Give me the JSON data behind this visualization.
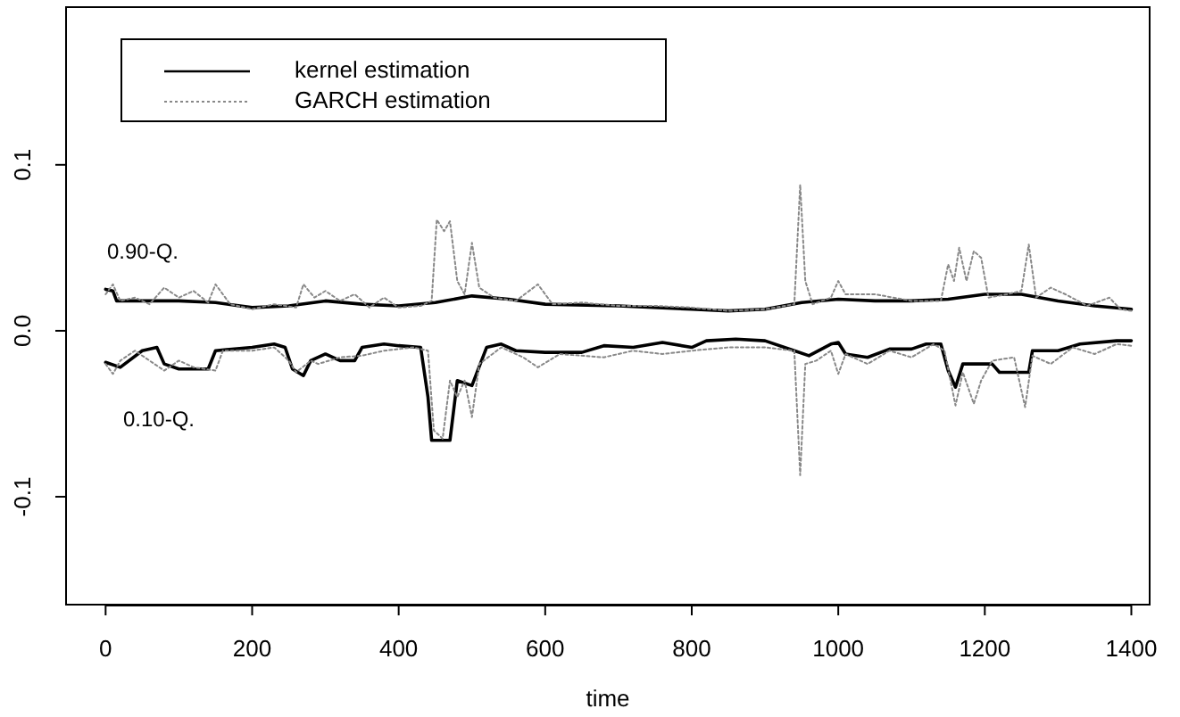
{
  "chart_data": {
    "type": "line",
    "xlabel": "time",
    "xlim": [
      -54,
      1425
    ],
    "xticks": [
      0,
      200,
      400,
      600,
      800,
      1000,
      1200,
      1400
    ],
    "ylim": [
      -0.165,
      0.195
    ],
    "yticks": [
      {
        "value": -0.1,
        "label": "-0.1"
      },
      {
        "value": 0,
        "label": "0.0"
      },
      {
        "value": 0.1,
        "label": "0.1"
      }
    ],
    "legend": "top left",
    "grid": false,
    "marker": "none",
    "annotations": [
      "0.90-Q.",
      "0.10-Q."
    ],
    "series": [
      {
        "name": "kernel estimation",
        "color": "#000000",
        "line_style": "solid",
        "x": [
          0,
          10,
          15,
          100,
          150,
          200,
          250,
          300,
          350,
          400,
          450,
          500,
          550,
          600,
          700,
          800,
          850,
          900,
          950,
          1000,
          1050,
          1100,
          1150,
          1200,
          1250,
          1300,
          1350,
          1400
        ],
        "values": [
          0.025,
          0.024,
          0.018,
          0.018,
          0.017,
          0.014,
          0.015,
          0.018,
          0.016,
          0.015,
          0.017,
          0.021,
          0.019,
          0.016,
          0.015,
          0.013,
          0.012,
          0.013,
          0.017,
          0.019,
          0.018,
          0.018,
          0.019,
          0.022,
          0.022,
          0.018,
          0.015,
          0.013
        ]
      },
      {
        "name": "GARCH estimation",
        "color": "#888888",
        "line_style": "dotted",
        "x": [
          0,
          10,
          20,
          40,
          60,
          80,
          100,
          120,
          140,
          150,
          170,
          200,
          230,
          260,
          270,
          285,
          300,
          320,
          340,
          360,
          380,
          400,
          430,
          445,
          452,
          462,
          470,
          480,
          490,
          500,
          510,
          530,
          560,
          590,
          610,
          650,
          700,
          750,
          800,
          850,
          900,
          940,
          948,
          955,
          965,
          990,
          1000,
          1010,
          1050,
          1100,
          1140,
          1150,
          1158,
          1165,
          1175,
          1185,
          1195,
          1205,
          1230,
          1250,
          1260,
          1270,
          1290,
          1310,
          1340,
          1370,
          1385,
          1400
        ],
        "values": [
          0.022,
          0.028,
          0.018,
          0.02,
          0.016,
          0.026,
          0.02,
          0.024,
          0.017,
          0.028,
          0.016,
          0.013,
          0.016,
          0.014,
          0.028,
          0.02,
          0.024,
          0.018,
          0.022,
          0.014,
          0.02,
          0.014,
          0.015,
          0.018,
          0.067,
          0.06,
          0.066,
          0.03,
          0.022,
          0.053,
          0.026,
          0.02,
          0.018,
          0.028,
          0.016,
          0.017,
          0.015,
          0.015,
          0.014,
          0.012,
          0.013,
          0.016,
          0.088,
          0.03,
          0.016,
          0.02,
          0.03,
          0.022,
          0.022,
          0.018,
          0.018,
          0.04,
          0.03,
          0.05,
          0.03,
          0.048,
          0.044,
          0.02,
          0.022,
          0.024,
          0.052,
          0.02,
          0.026,
          0.022,
          0.015,
          0.02,
          0.013,
          0.012
        ]
      },
      {
        "color": "#000000",
        "line_style": "solid",
        "x": [
          0,
          20,
          50,
          70,
          80,
          100,
          140,
          150,
          200,
          230,
          245,
          255,
          270,
          280,
          300,
          320,
          340,
          350,
          380,
          400,
          430,
          440,
          445,
          470,
          480,
          500,
          520,
          540,
          560,
          600,
          650,
          680,
          720,
          760,
          800,
          820,
          860,
          900,
          940,
          960,
          990,
          1000,
          1010,
          1040,
          1070,
          1100,
          1120,
          1140,
          1150,
          1160,
          1170,
          1210,
          1220,
          1260,
          1265,
          1300,
          1330,
          1380,
          1400
        ],
        "values": [
          -0.019,
          -0.022,
          -0.012,
          -0.01,
          -0.02,
          -0.023,
          -0.023,
          -0.012,
          -0.01,
          -0.008,
          -0.01,
          -0.023,
          -0.027,
          -0.018,
          -0.014,
          -0.018,
          -0.018,
          -0.01,
          -0.008,
          -0.009,
          -0.01,
          -0.04,
          -0.066,
          -0.066,
          -0.03,
          -0.033,
          -0.01,
          -0.008,
          -0.012,
          -0.013,
          -0.013,
          -0.009,
          -0.01,
          -0.007,
          -0.01,
          -0.006,
          -0.005,
          -0.006,
          -0.012,
          -0.015,
          -0.008,
          -0.007,
          -0.014,
          -0.016,
          -0.011,
          -0.011,
          -0.008,
          -0.008,
          -0.024,
          -0.034,
          -0.02,
          -0.02,
          -0.025,
          -0.025,
          -0.012,
          -0.012,
          -0.008,
          -0.006,
          -0.006
        ]
      },
      {
        "color": "#888888",
        "line_style": "dotted",
        "x": [
          0,
          10,
          20,
          40,
          60,
          80,
          100,
          120,
          150,
          160,
          200,
          230,
          250,
          260,
          280,
          290,
          320,
          350,
          380,
          420,
          440,
          448,
          460,
          470,
          480,
          490,
          500,
          510,
          540,
          570,
          590,
          620,
          680,
          720,
          760,
          800,
          850,
          900,
          940,
          948,
          955,
          970,
          990,
          1000,
          1010,
          1040,
          1070,
          1100,
          1130,
          1145,
          1160,
          1170,
          1185,
          1195,
          1210,
          1240,
          1255,
          1265,
          1290,
          1320,
          1350,
          1380,
          1400
        ],
        "values": [
          -0.02,
          -0.026,
          -0.018,
          -0.012,
          -0.018,
          -0.024,
          -0.018,
          -0.022,
          -0.024,
          -0.012,
          -0.012,
          -0.01,
          -0.018,
          -0.025,
          -0.018,
          -0.02,
          -0.016,
          -0.015,
          -0.012,
          -0.01,
          -0.012,
          -0.06,
          -0.065,
          -0.03,
          -0.04,
          -0.03,
          -0.052,
          -0.02,
          -0.01,
          -0.016,
          -0.022,
          -0.014,
          -0.016,
          -0.012,
          -0.014,
          -0.012,
          -0.01,
          -0.01,
          -0.012,
          -0.087,
          -0.02,
          -0.018,
          -0.012,
          -0.026,
          -0.014,
          -0.02,
          -0.012,
          -0.016,
          -0.008,
          -0.012,
          -0.045,
          -0.025,
          -0.044,
          -0.03,
          -0.018,
          -0.016,
          -0.046,
          -0.015,
          -0.02,
          -0.01,
          -0.014,
          -0.008,
          -0.009
        ]
      }
    ]
  }
}
